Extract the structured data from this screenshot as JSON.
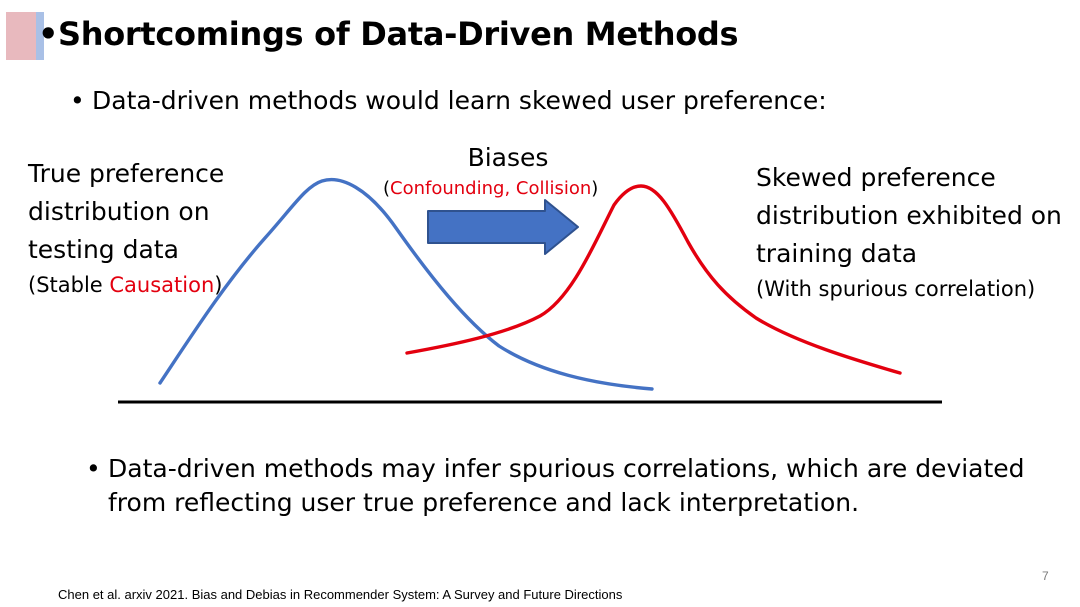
{
  "slide": {
    "title": "Shortcomings of Data-Driven Methods",
    "bullet_symbol": "•",
    "page_number": "7"
  },
  "bullets": {
    "top": "Data-driven methods would learn skewed user preference:",
    "bottom": "Data-driven methods may infer spurious correlations, which are deviated from reflecting user true preference and lack interpretation."
  },
  "diagram": {
    "left_label": {
      "line1": "True preference",
      "line2": "distribution on",
      "line3": "testing data",
      "sub_prefix": "(Stable ",
      "sub_highlight": "Causation",
      "sub_suffix": ")"
    },
    "center_label": {
      "title": "Biases",
      "sub_prefix": "(",
      "sub_highlight": "Confounding, Collision",
      "sub_suffix": ")"
    },
    "right_label": {
      "line1": "Skewed preference",
      "line2": "distribution exhibited on",
      "line3": "training data",
      "sub": "(With spurious correlation)"
    },
    "colors": {
      "true_curve": "#4472c4",
      "skewed_curve": "#e3000f",
      "arrow_fill": "#4472c4",
      "arrow_stroke": "#2f528f",
      "baseline": "#000000",
      "highlight_text": "#e3000f"
    }
  },
  "footer": {
    "citation": "Chen et al. arxiv 2021. Bias and Debias in Recommender System: A Survey and Future Directions"
  }
}
